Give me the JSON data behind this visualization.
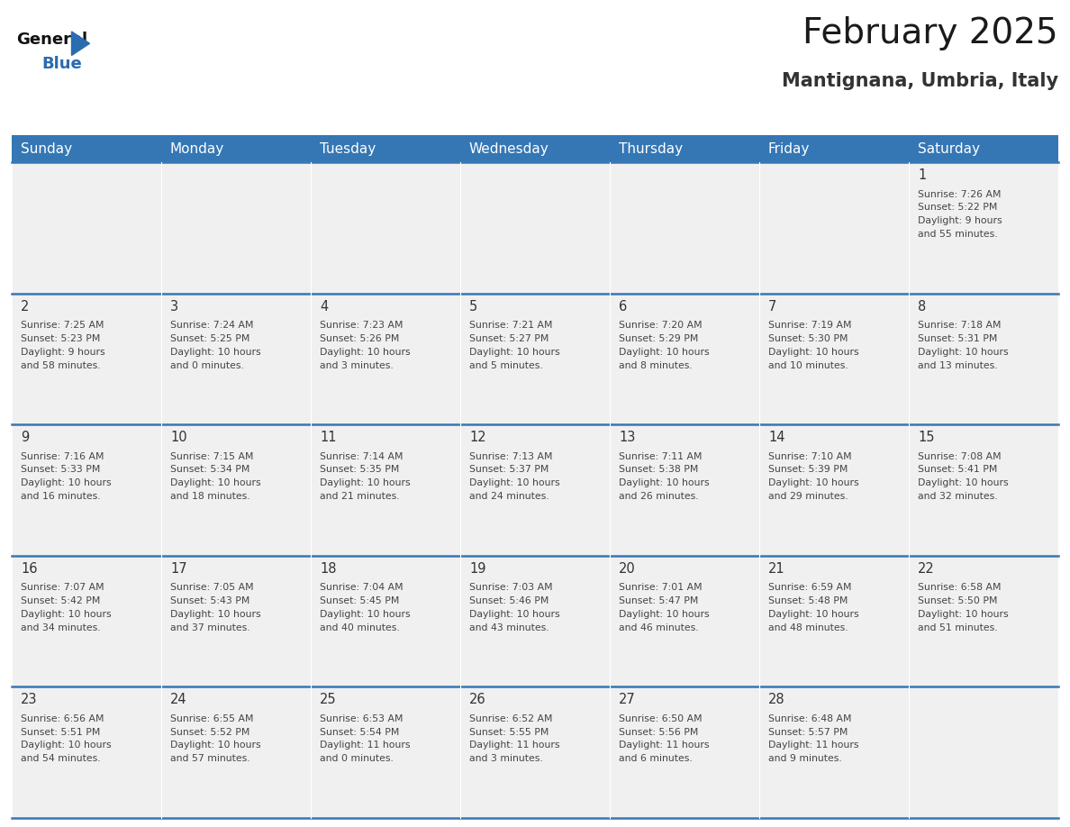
{
  "title": "February 2025",
  "subtitle": "Mantignana, Umbria, Italy",
  "days_of_week": [
    "Sunday",
    "Monday",
    "Tuesday",
    "Wednesday",
    "Thursday",
    "Friday",
    "Saturday"
  ],
  "header_bg": "#3577B5",
  "header_text": "#FFFFFF",
  "cell_bg": "#F0F0F0",
  "day_number_color": "#333333",
  "info_text_color": "#444444",
  "separator_color": "#3577B5",
  "title_color": "#1a1a1a",
  "subtitle_color": "#333333",
  "calendar_data": [
    [
      null,
      null,
      null,
      null,
      null,
      null,
      {
        "day": 1,
        "sunrise": "7:26 AM",
        "sunset": "5:22 PM",
        "daylight_hours": 9,
        "daylight_minutes": 55
      }
    ],
    [
      {
        "day": 2,
        "sunrise": "7:25 AM",
        "sunset": "5:23 PM",
        "daylight_hours": 9,
        "daylight_minutes": 58
      },
      {
        "day": 3,
        "sunrise": "7:24 AM",
        "sunset": "5:25 PM",
        "daylight_hours": 10,
        "daylight_minutes": 0
      },
      {
        "day": 4,
        "sunrise": "7:23 AM",
        "sunset": "5:26 PM",
        "daylight_hours": 10,
        "daylight_minutes": 3
      },
      {
        "day": 5,
        "sunrise": "7:21 AM",
        "sunset": "5:27 PM",
        "daylight_hours": 10,
        "daylight_minutes": 5
      },
      {
        "day": 6,
        "sunrise": "7:20 AM",
        "sunset": "5:29 PM",
        "daylight_hours": 10,
        "daylight_minutes": 8
      },
      {
        "day": 7,
        "sunrise": "7:19 AM",
        "sunset": "5:30 PM",
        "daylight_hours": 10,
        "daylight_minutes": 10
      },
      {
        "day": 8,
        "sunrise": "7:18 AM",
        "sunset": "5:31 PM",
        "daylight_hours": 10,
        "daylight_minutes": 13
      }
    ],
    [
      {
        "day": 9,
        "sunrise": "7:16 AM",
        "sunset": "5:33 PM",
        "daylight_hours": 10,
        "daylight_minutes": 16
      },
      {
        "day": 10,
        "sunrise": "7:15 AM",
        "sunset": "5:34 PM",
        "daylight_hours": 10,
        "daylight_minutes": 18
      },
      {
        "day": 11,
        "sunrise": "7:14 AM",
        "sunset": "5:35 PM",
        "daylight_hours": 10,
        "daylight_minutes": 21
      },
      {
        "day": 12,
        "sunrise": "7:13 AM",
        "sunset": "5:37 PM",
        "daylight_hours": 10,
        "daylight_minutes": 24
      },
      {
        "day": 13,
        "sunrise": "7:11 AM",
        "sunset": "5:38 PM",
        "daylight_hours": 10,
        "daylight_minutes": 26
      },
      {
        "day": 14,
        "sunrise": "7:10 AM",
        "sunset": "5:39 PM",
        "daylight_hours": 10,
        "daylight_minutes": 29
      },
      {
        "day": 15,
        "sunrise": "7:08 AM",
        "sunset": "5:41 PM",
        "daylight_hours": 10,
        "daylight_minutes": 32
      }
    ],
    [
      {
        "day": 16,
        "sunrise": "7:07 AM",
        "sunset": "5:42 PM",
        "daylight_hours": 10,
        "daylight_minutes": 34
      },
      {
        "day": 17,
        "sunrise": "7:05 AM",
        "sunset": "5:43 PM",
        "daylight_hours": 10,
        "daylight_minutes": 37
      },
      {
        "day": 18,
        "sunrise": "7:04 AM",
        "sunset": "5:45 PM",
        "daylight_hours": 10,
        "daylight_minutes": 40
      },
      {
        "day": 19,
        "sunrise": "7:03 AM",
        "sunset": "5:46 PM",
        "daylight_hours": 10,
        "daylight_minutes": 43
      },
      {
        "day": 20,
        "sunrise": "7:01 AM",
        "sunset": "5:47 PM",
        "daylight_hours": 10,
        "daylight_minutes": 46
      },
      {
        "day": 21,
        "sunrise": "6:59 AM",
        "sunset": "5:48 PM",
        "daylight_hours": 10,
        "daylight_minutes": 48
      },
      {
        "day": 22,
        "sunrise": "6:58 AM",
        "sunset": "5:50 PM",
        "daylight_hours": 10,
        "daylight_minutes": 51
      }
    ],
    [
      {
        "day": 23,
        "sunrise": "6:56 AM",
        "sunset": "5:51 PM",
        "daylight_hours": 10,
        "daylight_minutes": 54
      },
      {
        "day": 24,
        "sunrise": "6:55 AM",
        "sunset": "5:52 PM",
        "daylight_hours": 10,
        "daylight_minutes": 57
      },
      {
        "day": 25,
        "sunrise": "6:53 AM",
        "sunset": "5:54 PM",
        "daylight_hours": 11,
        "daylight_minutes": 0
      },
      {
        "day": 26,
        "sunrise": "6:52 AM",
        "sunset": "5:55 PM",
        "daylight_hours": 11,
        "daylight_minutes": 3
      },
      {
        "day": 27,
        "sunrise": "6:50 AM",
        "sunset": "5:56 PM",
        "daylight_hours": 11,
        "daylight_minutes": 6
      },
      {
        "day": 28,
        "sunrise": "6:48 AM",
        "sunset": "5:57 PM",
        "daylight_hours": 11,
        "daylight_minutes": 9
      },
      null
    ]
  ]
}
